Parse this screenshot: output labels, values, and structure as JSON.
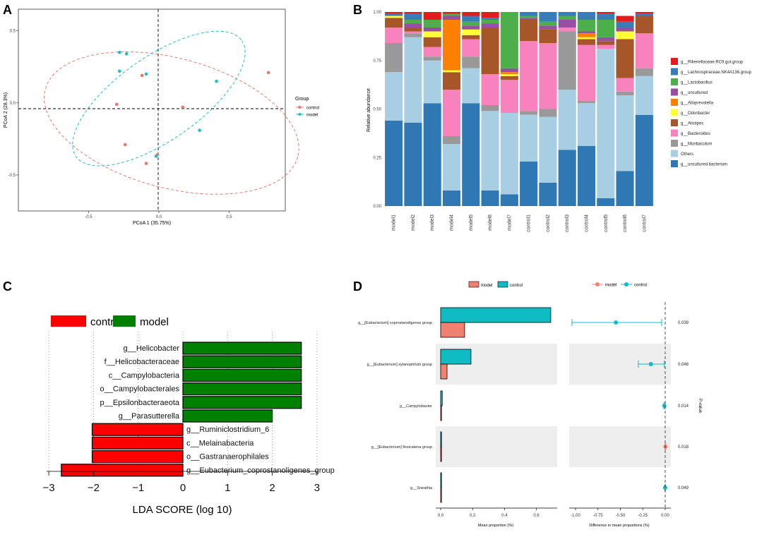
{
  "panel_labels": [
    "A",
    "B",
    "C",
    "D"
  ],
  "colors": {
    "control": "#E8776C",
    "model": "#1DBFC3",
    "lefse_control": "#FF0000",
    "lefse_model": "#008000",
    "d_model": "#F08070",
    "d_control": "#10BCC4"
  },
  "chart_data": [
    {
      "id": "A",
      "type": "scatter",
      "title": "",
      "xlabel": "PCoA 1 (35.75%)",
      "ylabel": "PCoA 2 (28.3%)",
      "xlim": [
        -1.0,
        0.9
      ],
      "ylim": [
        -0.75,
        0.65
      ],
      "xticks": [
        -0.5,
        0.0,
        0.5
      ],
      "xtick_labels": [
        "-0.5",
        "0.0",
        "0.5"
      ],
      "yticks": [
        -0.5,
        0.0,
        0.5
      ],
      "ytick_labels": [
        "-0.5",
        "0.0",
        "0.5"
      ],
      "legend": {
        "title": "Group",
        "entries": [
          "control",
          "model"
        ]
      },
      "series": [
        {
          "name": "control",
          "points": [
            [
              -0.3,
              -0.01
            ],
            [
              -0.12,
              0.19
            ],
            [
              0.17,
              -0.03
            ],
            [
              0.78,
              0.21
            ],
            [
              -0.24,
              -0.29
            ],
            [
              -0.09,
              -0.42
            ],
            [
              -0.01,
              -0.36
            ]
          ]
        },
        {
          "name": "model",
          "points": [
            [
              -0.28,
              0.35
            ],
            [
              -0.23,
              0.34
            ],
            [
              -0.28,
              0.22
            ],
            [
              -0.09,
              0.2
            ],
            [
              0.41,
              0.15
            ],
            [
              0.29,
              -0.19
            ],
            [
              -0.02,
              -0.37
            ]
          ]
        }
      ],
      "ellipses": [
        {
          "name": "control",
          "center": [
            0.09,
            -0.14
          ],
          "rx": 0.93,
          "ry": 0.45,
          "rotation_deg": 15
        },
        {
          "name": "model",
          "center": [
            0.0,
            0.03
          ],
          "rx": 0.72,
          "ry": 0.29,
          "rotation_deg": -35
        }
      ]
    },
    {
      "id": "B",
      "type": "bar",
      "stacked": true,
      "xlabel": "",
      "ylabel": "Relative abundance",
      "ylim": [
        0,
        1
      ],
      "yticks": [
        0,
        0.25,
        0.5,
        0.75,
        1
      ],
      "ytick_labels": [
        "0.00",
        "0.25",
        "0.50",
        "0.75",
        "1.00"
      ],
      "categories": [
        "model1",
        "model2",
        "model3",
        "model4",
        "model5",
        "model6",
        "model7",
        "control1",
        "control2",
        "control3",
        "control4",
        "control5",
        "control6",
        "control7"
      ],
      "legend_order": [
        "g__Rikenellaceae.RC9.gut.group",
        "g__Lachnospiraceae.NK4A136.group",
        "g__Lactobacillus",
        "g__uncultured",
        "g__Alloprevotella",
        "g__Odoribacter",
        "g__Alistipes",
        "g__Bacteroides",
        "g__Muribaculum",
        "Others",
        "g__uncultured.bacterium"
      ],
      "series": [
        {
          "name": "g__uncultured.bacterium",
          "color": "#2F78B4",
          "values": [
            0.44,
            0.43,
            0.53,
            0.08,
            0.53,
            0.08,
            0.06,
            0.23,
            0.12,
            0.29,
            0.31,
            0.04,
            0.18,
            0.47
          ]
        },
        {
          "name": "Others",
          "color": "#A7CEE3",
          "values": [
            0.25,
            0.44,
            0.22,
            0.24,
            0.18,
            0.41,
            0.42,
            0.24,
            0.34,
            0.31,
            0.22,
            0.77,
            0.39,
            0.2
          ]
        },
        {
          "name": "g__Muribaculum",
          "color": "#999999",
          "values": [
            0.15,
            0.02,
            0.02,
            0.04,
            0.06,
            0.03,
            0.0,
            0.02,
            0.04,
            0.3,
            0.01,
            0.0,
            0.02,
            0.04
          ]
        },
        {
          "name": "g__Bacteroides",
          "color": "#F782BE",
          "values": [
            0.08,
            0.01,
            0.05,
            0.24,
            0.09,
            0.16,
            0.17,
            0.36,
            0.34,
            0.02,
            0.29,
            0.02,
            0.07,
            0.18
          ]
        },
        {
          "name": "g__Alistipes",
          "color": "#A65628",
          "values": [
            0.05,
            0.02,
            0.05,
            0.09,
            0.02,
            0.24,
            0.02,
            0.11,
            0.07,
            0.0,
            0.03,
            0.02,
            0.2,
            0.09
          ]
        },
        {
          "name": "g__Odoribacter",
          "color": "#FFFF33",
          "values": [
            0.01,
            0.0,
            0.03,
            0.01,
            0.03,
            0.0,
            0.01,
            0.0,
            0.0,
            0.0,
            0.01,
            0.0,
            0.04,
            0.0
          ]
        },
        {
          "name": "g__Alloprevotella",
          "color": "#FF7F00",
          "values": [
            0.0,
            0.0,
            0.0,
            0.26,
            0.0,
            0.0,
            0.01,
            0.0,
            0.0,
            0.0,
            0.02,
            0.0,
            0.0,
            0.0
          ]
        },
        {
          "name": "g__uncultured",
          "color": "#984EA3",
          "values": [
            0.0,
            0.02,
            0.02,
            0.02,
            0.02,
            0.02,
            0.02,
            0.01,
            0.02,
            0.04,
            0.01,
            0.02,
            0.02,
            0.0
          ]
        },
        {
          "name": "g__Lactobacillus",
          "color": "#4DAF4A",
          "values": [
            0.0,
            0.02,
            0.04,
            0.01,
            0.02,
            0.02,
            0.29,
            0.01,
            0.02,
            0.02,
            0.06,
            0.09,
            0.0,
            0.0
          ]
        },
        {
          "name": "g__Lachnospiraceae.NK4A136.group",
          "color": "#377EB8",
          "values": [
            0.01,
            0.03,
            0.0,
            0.0,
            0.03,
            0.01,
            0.0,
            0.02,
            0.05,
            0.02,
            0.04,
            0.03,
            0.03,
            0.01
          ]
        },
        {
          "name": "g__Rikenellaceae.RC9.gut.group",
          "color": "#E41A1C",
          "values": [
            0.01,
            0.01,
            0.04,
            0.01,
            0.02,
            0.03,
            0.0,
            0.0,
            0.0,
            0.0,
            0.0,
            0.01,
            0.03,
            0.01
          ]
        }
      ]
    },
    {
      "id": "C",
      "type": "bar",
      "orientation": "horizontal",
      "xlabel": "LDA SCORE (log 10)",
      "ylabel": "",
      "xlim": [
        -3,
        3
      ],
      "xticks": [
        -3,
        -2,
        -1,
        0,
        1,
        2,
        3
      ],
      "xtick_labels": [
        "−3",
        "−2",
        "−1",
        "0",
        "1",
        "2",
        "3"
      ],
      "legend": {
        "entries": [
          "control",
          "model"
        ]
      },
      "categories": [
        "g__Helicobacter",
        "f__Helicobacteraceae",
        "c__Campylobacteria",
        "o__Campylobacterales",
        "p__Epsilonbacteraeota",
        "g__Parasutterella",
        "g__Ruminiclostridium_6",
        "c__Melainabacteria",
        "o__Gastranaerophilales",
        "g__Eubacterium_coprostanoligenes_group"
      ],
      "groups": [
        "model",
        "model",
        "model",
        "model",
        "model",
        "model",
        "control",
        "control",
        "control",
        "control"
      ],
      "values": [
        2.65,
        2.65,
        2.65,
        2.65,
        2.65,
        2.0,
        -2.03,
        -2.03,
        -2.03,
        -2.72
      ]
    },
    {
      "id": "D",
      "type": "bar",
      "orientation": "horizontal",
      "xlabel": "Mean proportion (%)",
      "xlim": [
        -0.02,
        0.74
      ],
      "xticks": [
        0.0,
        0.2,
        0.4,
        0.6
      ],
      "xtick_labels": [
        "0.0",
        "0.2",
        "0.4",
        "0.6"
      ],
      "legend": {
        "entries": [
          "model",
          "control"
        ]
      },
      "categories": [
        "g__[Eubacterium] coprostanoligenes group",
        "g__[Eubacterium] xylanophilum group",
        "g__Campylobacter",
        "g__[Eubacterium] fissicatena group",
        "g__Sneathia"
      ],
      "series": [
        {
          "name": "control",
          "values": [
            0.69,
            0.19,
            0.01,
            0.001,
            0.001
          ]
        },
        {
          "name": "model",
          "values": [
            0.15,
            0.04,
            0.003,
            0.004,
            0.001
          ]
        }
      ],
      "diff_plot": {
        "xlabel": "Difference in mean proportions (%)",
        "xlim": [
          -1.1,
          0.05
        ],
        "xticks": [
          -1.0,
          -0.75,
          -0.5,
          -0.25,
          0.0
        ],
        "xtick_labels": [
          "-1.00",
          "-0.75",
          "-0.50",
          "-0.25",
          "0.00"
        ],
        "legend": {
          "entries": [
            "model",
            "control"
          ]
        },
        "estimates": [
          -0.55,
          -0.16,
          -0.01,
          0.003,
          -0.001
        ],
        "ci_low": [
          -1.04,
          -0.3,
          -0.015,
          -0.002,
          -0.004
        ],
        "ci_high": [
          -0.04,
          -0.01,
          -0.003,
          0.006,
          0.002
        ],
        "marker_group": [
          "control",
          "control",
          "control",
          "model",
          "control"
        ]
      },
      "p_value_label": "P-value",
      "p_values": [
        "0.039",
        "0.048",
        "0.014",
        "0.018",
        "0.049"
      ]
    }
  ]
}
